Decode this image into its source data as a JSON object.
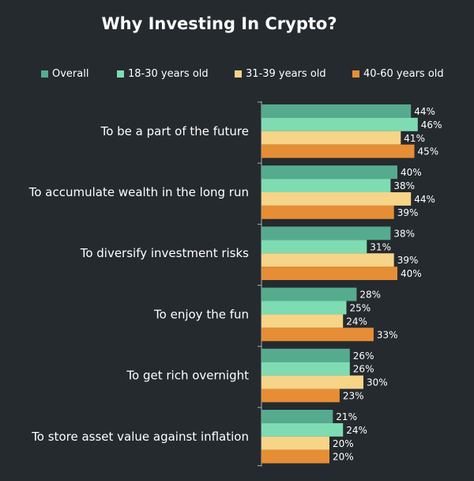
{
  "chart_data": {
    "type": "bar",
    "orientation": "horizontal",
    "title": "Why Investing In Crypto?",
    "xlabel": "",
    "ylabel": "",
    "xlim": [
      0,
      46
    ],
    "grid": false,
    "legend_position": "top",
    "value_suffix": "%",
    "categories": [
      "To be a part of the future",
      "To accumulate wealth in the long run",
      "To diversify investment risks",
      "To enjoy the fun",
      "To get rich overnight",
      "To store asset value against inflation"
    ],
    "series": [
      {
        "name": "Overall",
        "color": "#56ab8f",
        "values": [
          44,
          40,
          38,
          28,
          26,
          21
        ]
      },
      {
        "name": "18-30 years old",
        "color": "#7fdcb2",
        "values": [
          46,
          38,
          31,
          25,
          26,
          24
        ]
      },
      {
        "name": "31-39 years old",
        "color": "#f6d488",
        "values": [
          41,
          44,
          39,
          24,
          30,
          20
        ]
      },
      {
        "name": "40-60 years old",
        "color": "#e68e36",
        "values": [
          45,
          39,
          40,
          33,
          23,
          20
        ]
      }
    ]
  }
}
